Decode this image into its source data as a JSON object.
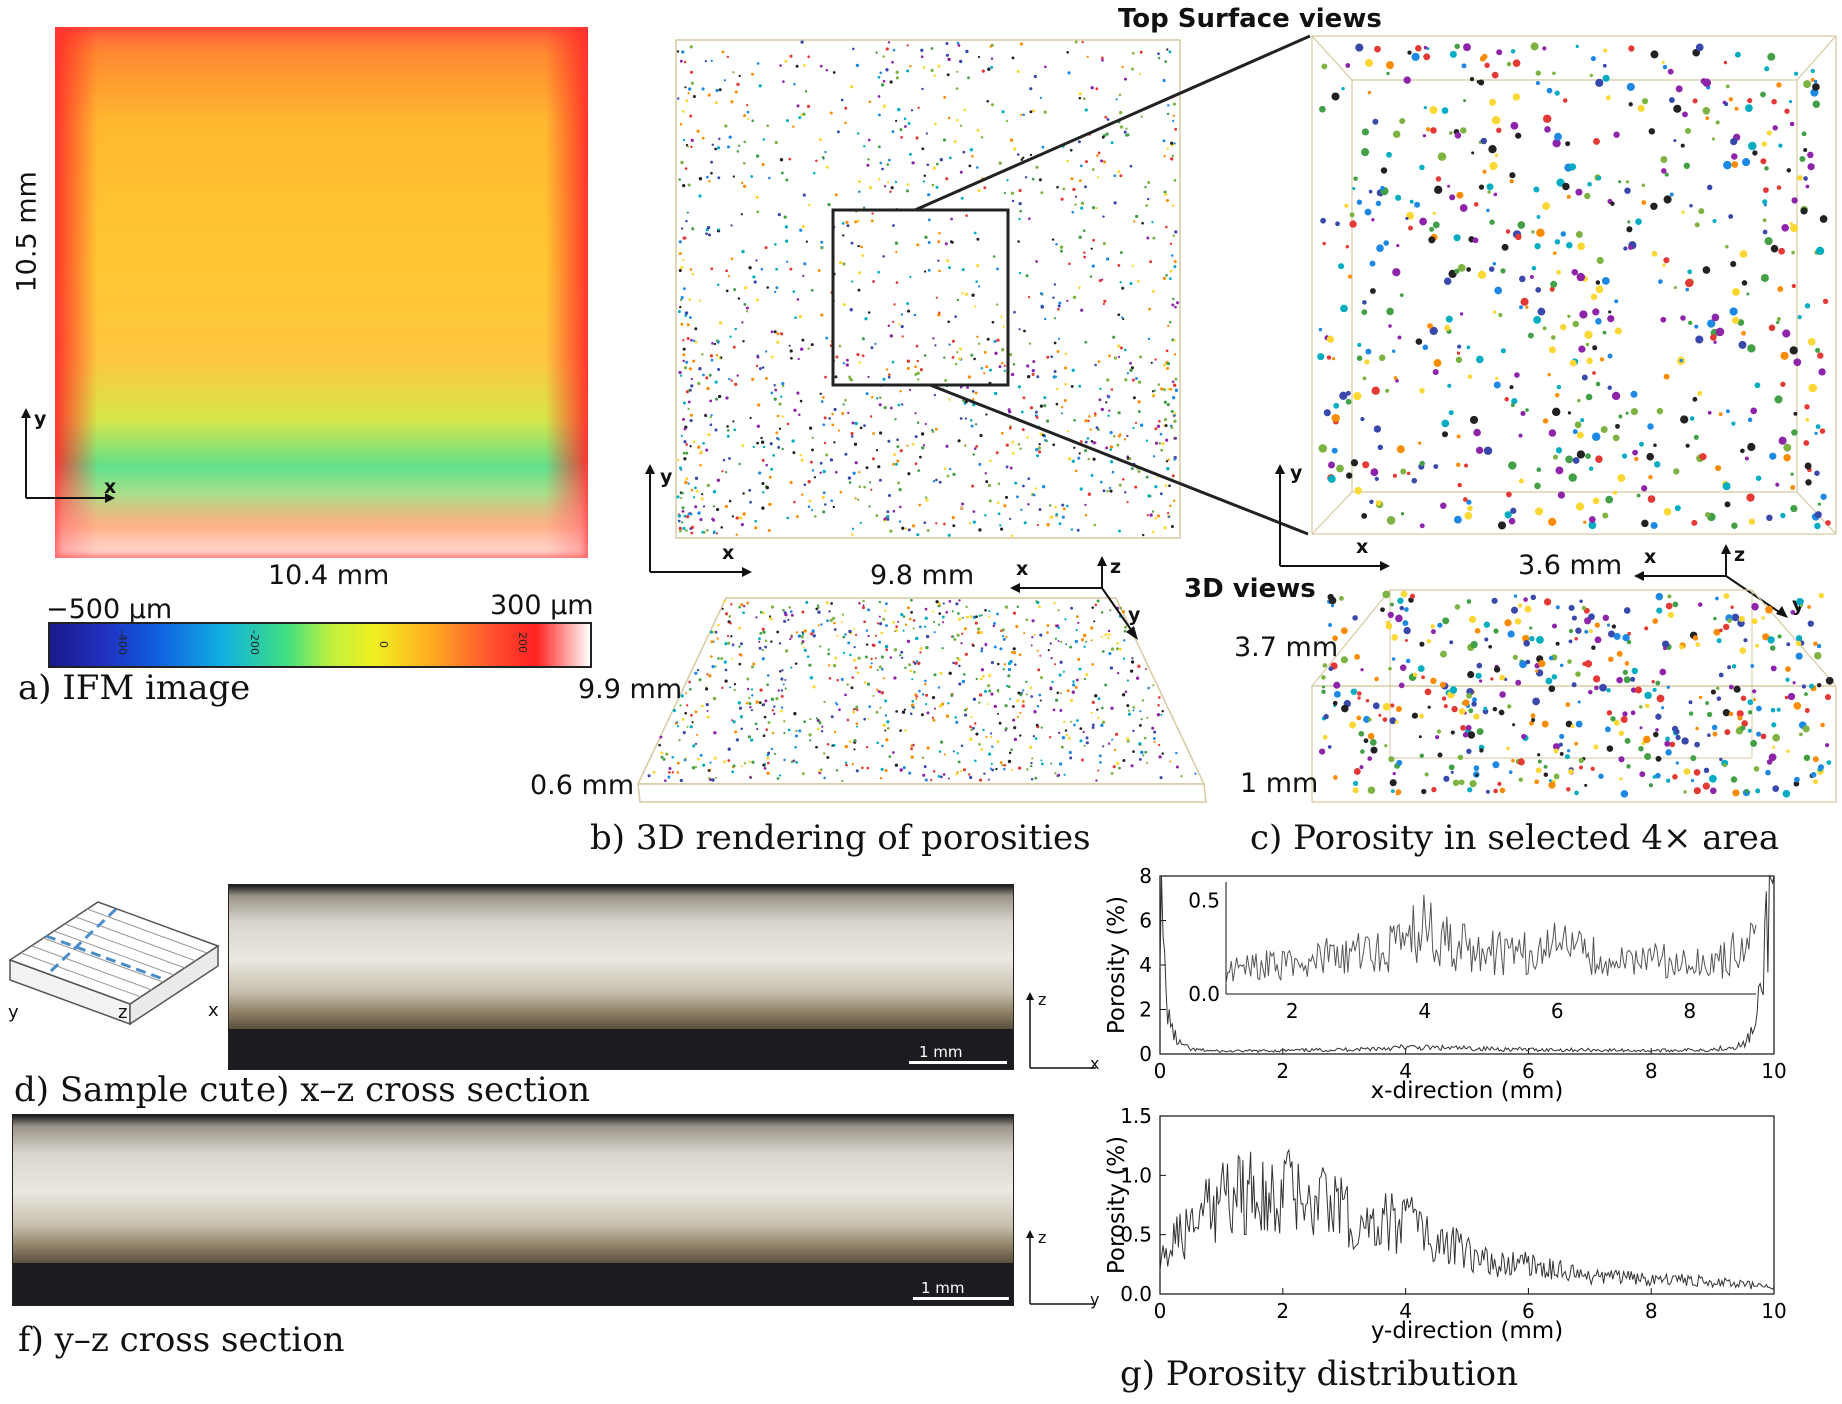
{
  "panel_a": {
    "caption": "a) IFM image",
    "height_label": "10.5 mm",
    "width_label": "10.4 mm",
    "axis_y": "y",
    "axis_x": "x",
    "scale_min": "−500 µm",
    "scale_max": "300 µm",
    "scale_ticks": [
      "-400",
      "-200",
      "0",
      "200"
    ]
  },
  "panel_b": {
    "caption": "b) 3D rendering of porosities",
    "top_title": "Top Surface views",
    "axis_y": "y",
    "axis_x": "x",
    "width_label": "9.8 mm",
    "depth_label": "9.9 mm",
    "height_label": "0.6 mm",
    "view3d_axes": {
      "x": "x",
      "z": "z",
      "y": "y"
    }
  },
  "panel_c": {
    "caption": "c) Porosity in selected 4× area",
    "axis_y": "y",
    "axis_x": "x",
    "views_label": "3D views",
    "width_label": "3.6 mm",
    "depth_label": "3.7 mm",
    "height_label": "1 mm",
    "view3d_axes": {
      "x": "x",
      "z": "z",
      "y": "y"
    }
  },
  "panel_d": {
    "caption": "d) Sample cut",
    "axes": {
      "y": "y",
      "z": "z",
      "x": "x"
    }
  },
  "panel_e": {
    "caption": "e) x–z cross section",
    "scalebar": "1 mm",
    "axes": {
      "z": "z",
      "x": "x"
    }
  },
  "panel_f": {
    "caption": "f) y–z cross section",
    "scalebar": "1 mm",
    "axes": {
      "z": "z",
      "y": "y"
    }
  },
  "panel_g": {
    "caption": "g) Porosity distribution"
  },
  "colors": {
    "axis": "#111111",
    "line": "#333333",
    "box": "#d8c9a0"
  },
  "chart_data": [
    {
      "type": "line",
      "title": "",
      "xlabel": "x-direction (mm)",
      "ylabel": "Porosity (%)",
      "xlim": [
        0,
        10
      ],
      "ylim": [
        0,
        8
      ],
      "xticks": [
        "0",
        "2",
        "4",
        "6",
        "8",
        "10"
      ],
      "yticks": [
        "0",
        "2",
        "4",
        "6",
        "8"
      ],
      "x": [
        0,
        0.1,
        0.2,
        0.3,
        0.5,
        1,
        2,
        3,
        4,
        5,
        6,
        7,
        8,
        9,
        9.5,
        9.7,
        9.8,
        9.9,
        10
      ],
      "values": [
        7,
        2.5,
        1,
        0.5,
        0.2,
        0.12,
        0.15,
        0.2,
        0.3,
        0.25,
        0.2,
        0.18,
        0.15,
        0.2,
        0.4,
        1.2,
        3,
        6.5,
        7.5
      ],
      "inset": {
        "xlim": [
          1,
          9
        ],
        "ylim": [
          0,
          0.6
        ],
        "xticks": [
          "2",
          "4",
          "6",
          "8"
        ],
        "yticks": [
          "0.0",
          "0.5"
        ],
        "x": [
          1,
          1.5,
          2,
          2.5,
          3,
          3.5,
          4,
          4.5,
          5,
          5.5,
          6,
          6.5,
          7,
          7.5,
          8,
          8.5,
          9
        ],
        "values": [
          0.12,
          0.16,
          0.15,
          0.2,
          0.22,
          0.26,
          0.35,
          0.25,
          0.22,
          0.22,
          0.25,
          0.2,
          0.18,
          0.2,
          0.15,
          0.18,
          0.3
        ]
      }
    },
    {
      "type": "line",
      "title": "",
      "xlabel": "y-direction (mm)",
      "ylabel": "Porosity (%)",
      "xlim": [
        0,
        10
      ],
      "ylim": [
        0,
        1.5
      ],
      "xticks": [
        "0",
        "2",
        "4",
        "6",
        "8",
        "10"
      ],
      "yticks": [
        "0.0",
        "0.5",
        "1.0",
        "1.5"
      ],
      "x": [
        0,
        0.5,
        1,
        1.5,
        2,
        2.5,
        3,
        3.5,
        4,
        4.5,
        5,
        5.5,
        6,
        6.5,
        7,
        7.5,
        8,
        8.5,
        9,
        9.5,
        10
      ],
      "values": [
        0.35,
        0.55,
        0.8,
        0.9,
        0.85,
        0.9,
        0.7,
        0.6,
        0.6,
        0.45,
        0.35,
        0.25,
        0.25,
        0.2,
        0.15,
        0.15,
        0.12,
        0.12,
        0.1,
        0.08,
        0.05
      ]
    }
  ]
}
